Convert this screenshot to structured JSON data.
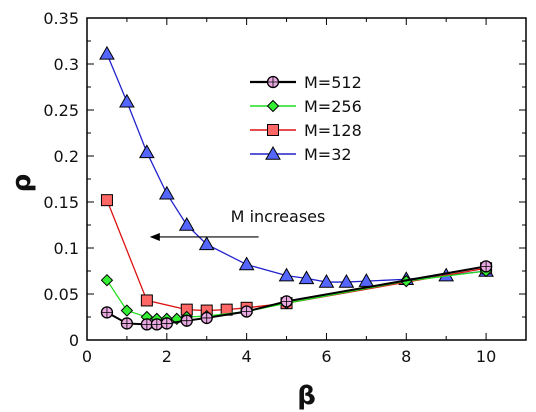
{
  "chart_data": {
    "type": "line",
    "xlabel": "β",
    "ylabel": "ρ",
    "xlim": [
      0,
      11
    ],
    "ylim": [
      0,
      0.35
    ],
    "xticks": [
      0,
      2,
      4,
      6,
      8,
      10
    ],
    "yticks": [
      0,
      0.05,
      0.1,
      0.15,
      0.2,
      0.25,
      0.3,
      0.35
    ],
    "grid": false,
    "legend_position": "upper-middle",
    "annotation": {
      "text": "M increases",
      "arrow_from": [
        4.3,
        0.112
      ],
      "arrow_to": [
        1.6,
        0.112
      ]
    },
    "series": [
      {
        "name": "M=512",
        "color": "#000000",
        "marker": "circle",
        "marker_fill": "#e8a8e0",
        "x": [
          0.5,
          1.0,
          1.5,
          1.75,
          2.0,
          2.5,
          3.0,
          4.0,
          5.0,
          10.0
        ],
        "y": [
          0.03,
          0.018,
          0.017,
          0.017,
          0.018,
          0.021,
          0.024,
          0.031,
          0.042,
          0.08
        ]
      },
      {
        "name": "M=256",
        "color": "#22dd22",
        "marker": "diamond",
        "marker_fill": "#33ee33",
        "x": [
          0.5,
          1.0,
          1.5,
          1.75,
          2.0,
          2.25,
          2.5,
          3.0,
          4.0,
          5.0,
          8.0,
          10.0
        ],
        "y": [
          0.065,
          0.032,
          0.025,
          0.023,
          0.023,
          0.023,
          0.025,
          0.026,
          0.031,
          0.04,
          0.064,
          0.075
        ]
      },
      {
        "name": "M=128",
        "color": "#dd1111",
        "marker": "square",
        "marker_fill": "#ff6666",
        "x": [
          0.5,
          1.5,
          2.5,
          3.0,
          3.5,
          4.0,
          5.0,
          10.0
        ],
        "y": [
          0.152,
          0.043,
          0.033,
          0.032,
          0.033,
          0.035,
          0.04,
          0.078
        ]
      },
      {
        "name": "M=32",
        "color": "#2222cc",
        "marker": "triangle",
        "marker_fill": "#5566ff",
        "x": [
          0.5,
          1.0,
          1.5,
          2.0,
          2.5,
          3.0,
          4.0,
          5.0,
          5.5,
          6.0,
          6.5,
          7.0,
          8.0,
          9.0,
          10.0
        ],
        "y": [
          0.311,
          0.259,
          0.204,
          0.159,
          0.125,
          0.104,
          0.082,
          0.07,
          0.067,
          0.063,
          0.063,
          0.064,
          0.066,
          0.07,
          0.075
        ]
      }
    ]
  }
}
